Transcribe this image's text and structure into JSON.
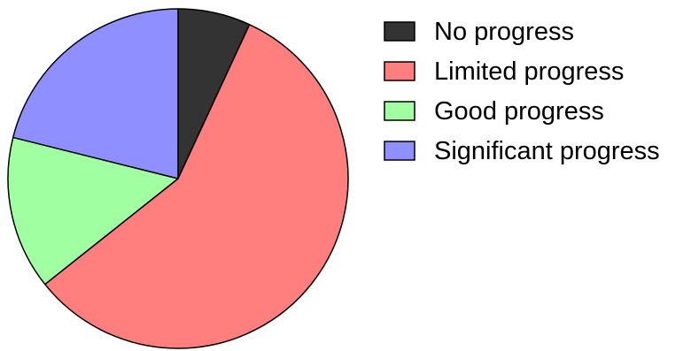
{
  "chart_data": {
    "type": "pie",
    "title": "",
    "legend_position": "right",
    "start_angle": "12 o'clock",
    "direction": "clockwise",
    "slices": [
      {
        "label": "No progress",
        "value": 6.9,
        "color": "#333333"
      },
      {
        "label": "Limited progress",
        "value": 57.4,
        "color": "#ff7f7f"
      },
      {
        "label": "Good progress",
        "value": 14.6,
        "color": "#a0ffa0"
      },
      {
        "label": "Significant progress",
        "value": 21.1,
        "color": "#8f8fff"
      }
    ]
  }
}
